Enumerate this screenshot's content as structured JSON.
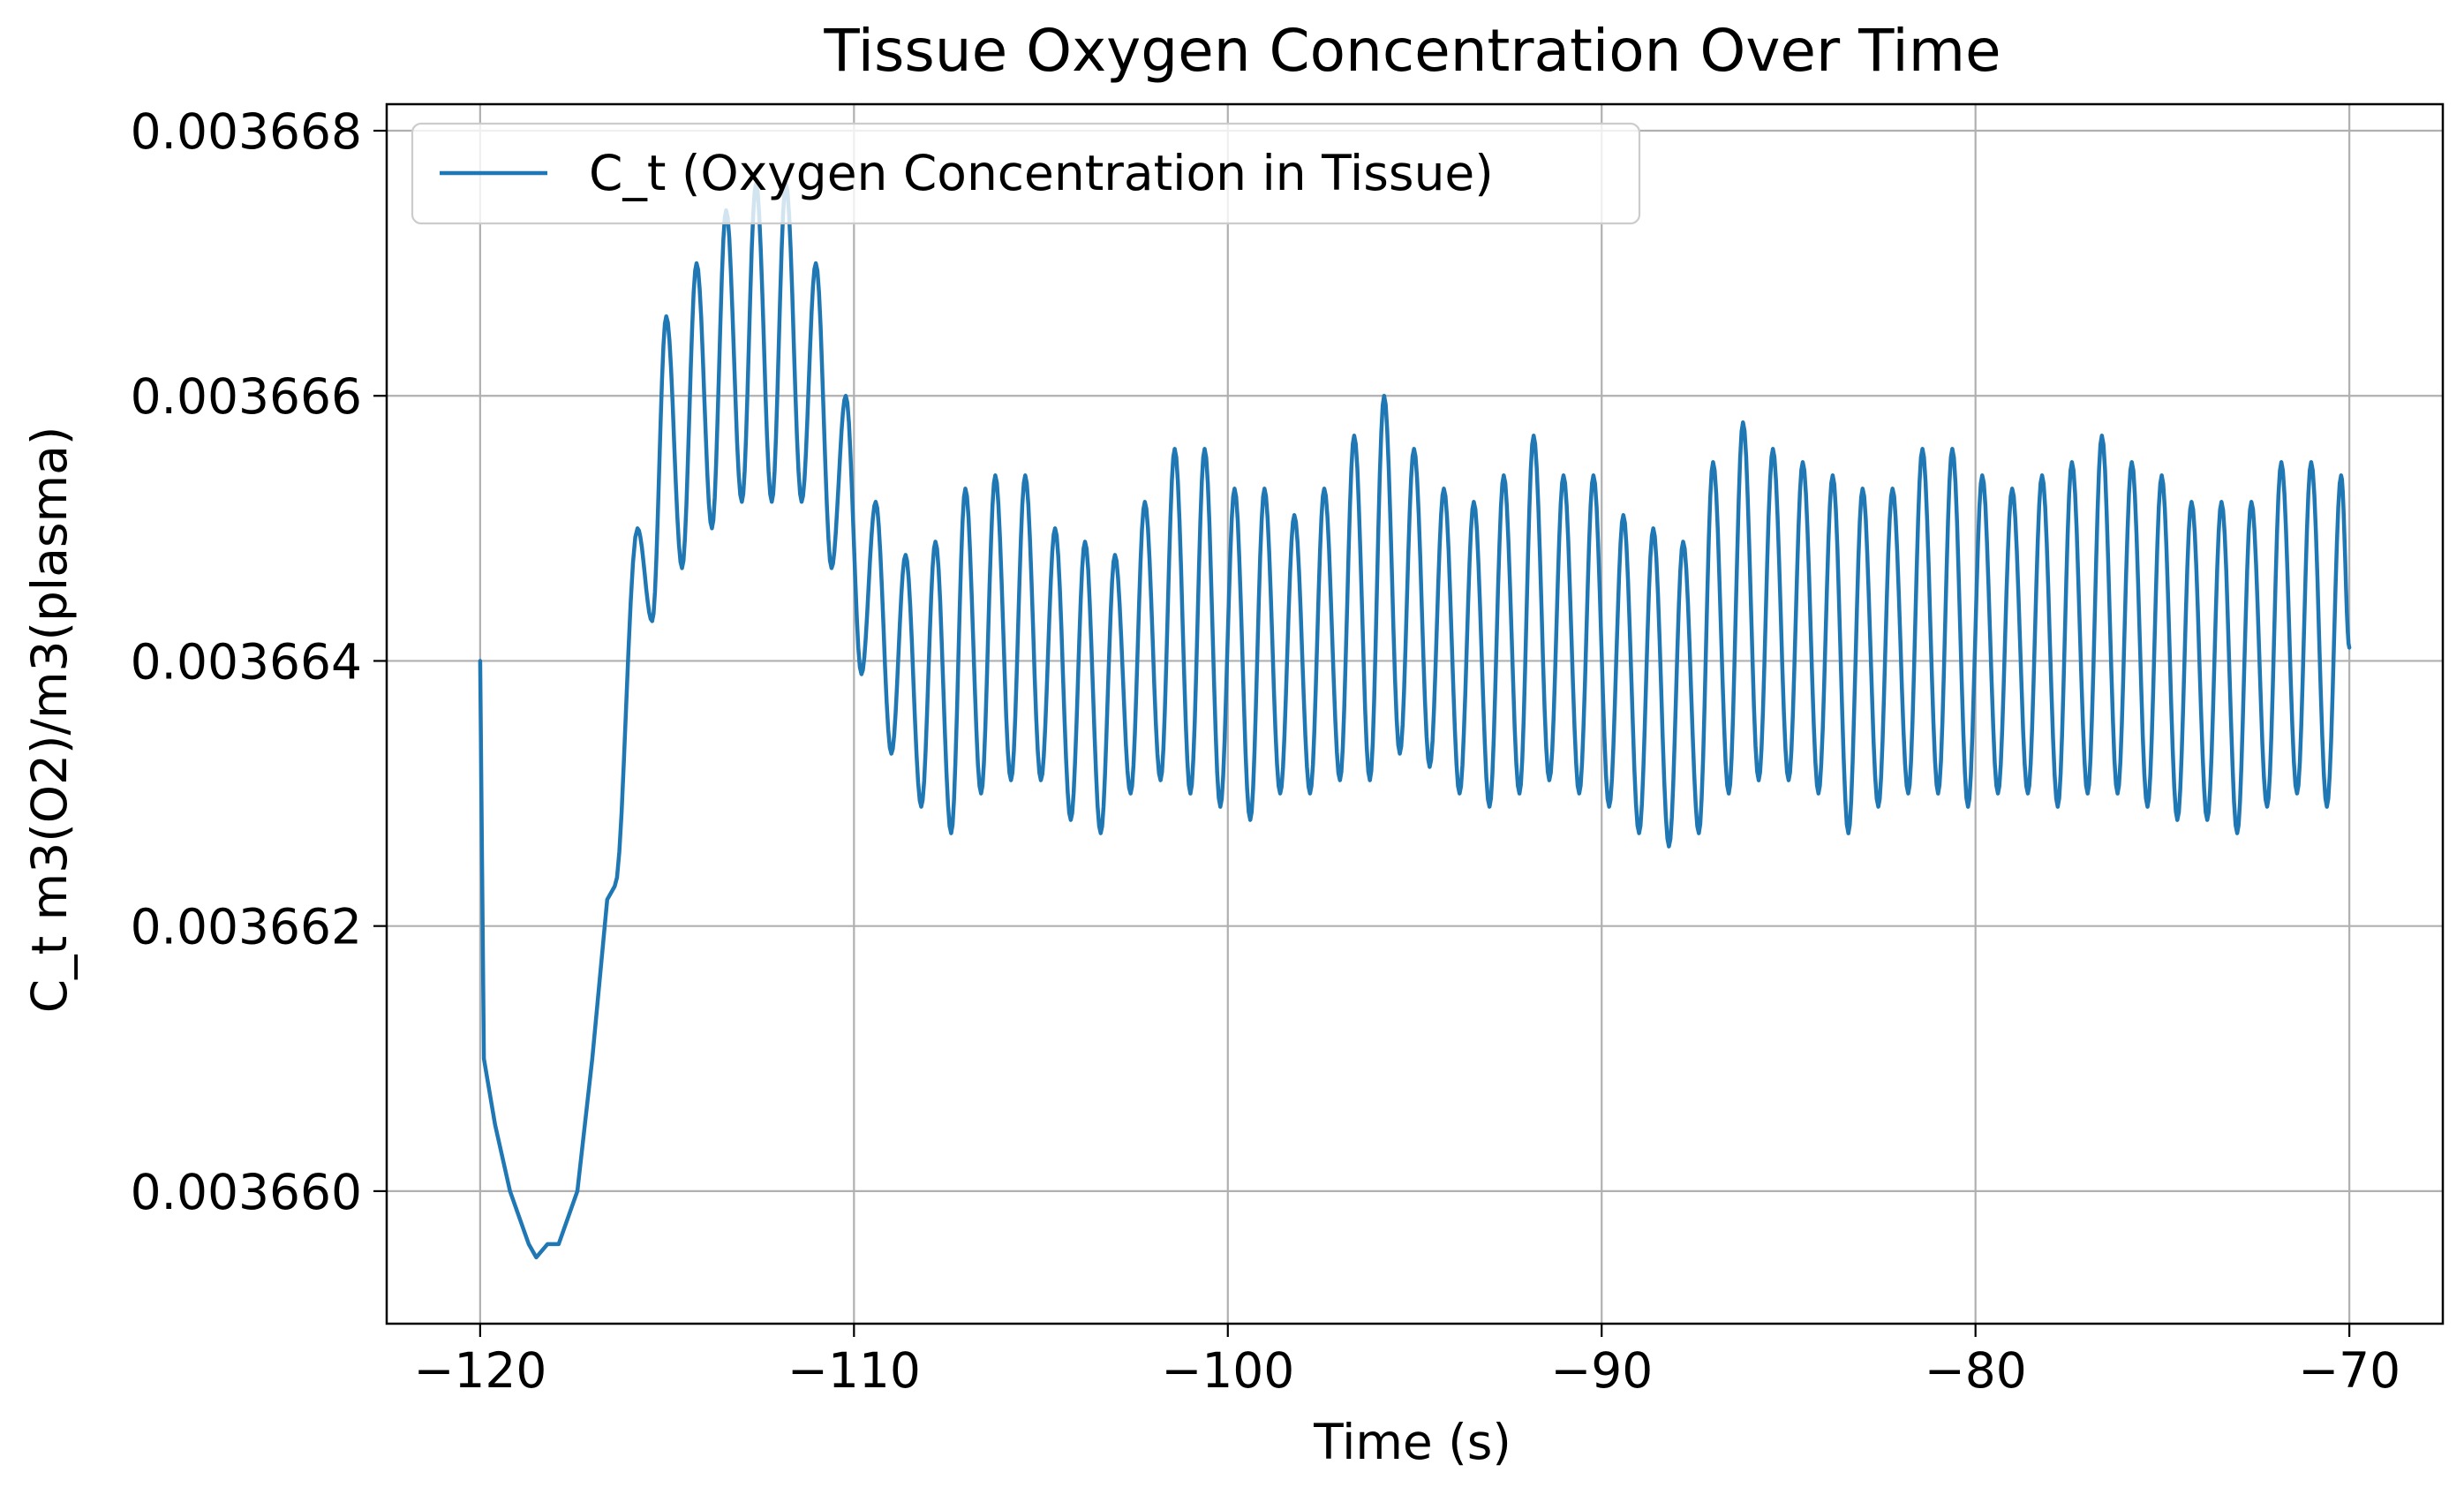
{
  "chart_data": {
    "type": "line",
    "title": "Tissue Oxygen Concentration Over Time",
    "xlabel": "Time (s)",
    "ylabel": "C_t m3(O2)/m3(plasma)",
    "xlim": [
      -122.5,
      -67.5
    ],
    "ylim": [
      0.003659,
      0.0036682
    ],
    "x_ticks": [
      -120,
      -110,
      -100,
      -90,
      -80,
      -70
    ],
    "x_tick_labels": [
      "−120",
      "−110",
      "−100",
      "−90",
      "−80",
      "−70"
    ],
    "y_ticks": [
      0.00366,
      0.003662,
      0.003664,
      0.003666,
      0.003668
    ],
    "y_tick_labels": [
      "0.003660",
      "0.003662",
      "0.003664",
      "0.003666",
      "0.003668"
    ],
    "grid": true,
    "legend_position": "top-left",
    "series": [
      {
        "name": "C_t (Oxygen Concentration in Tissue)",
        "color": "#1f77b4",
        "x_range": [
          -120,
          -70
        ],
        "x": [
          -120.0,
          -119.9,
          -119.6,
          -119.2,
          -118.7,
          -118.5,
          -118.2,
          -117.9,
          -117.4,
          -117.0,
          -116.6,
          -116.4
        ],
        "values": [
          0.003664,
          0.003661,
          0.0036605,
          0.00366,
          0.0036596,
          0.0036595,
          0.0036596,
          0.0036596,
          0.00366,
          0.003661,
          0.0036622,
          0.0036623
        ],
        "peaks": [
          [
            -115.79,
            0.003665
          ],
          [
            -115.02,
            0.0036666
          ],
          [
            -114.21,
            0.003667
          ],
          [
            -113.42,
            0.0036674
          ],
          [
            -112.62,
            0.0036676
          ],
          [
            -111.82,
            0.0036676
          ],
          [
            -111.02,
            0.003667
          ],
          [
            -110.22,
            0.003666
          ],
          [
            -109.42,
            0.0036652
          ],
          [
            -108.62,
            0.0036648
          ],
          [
            -107.82,
            0.0036649
          ],
          [
            -107.02,
            0.0036653
          ],
          [
            -106.22,
            0.0036654
          ],
          [
            -105.42,
            0.0036654
          ],
          [
            -104.62,
            0.003665
          ],
          [
            -103.82,
            0.0036649
          ],
          [
            -103.02,
            0.0036648
          ],
          [
            -102.22,
            0.0036652
          ],
          [
            -101.42,
            0.0036656
          ],
          [
            -100.62,
            0.0036656
          ],
          [
            -99.82,
            0.0036653
          ],
          [
            -99.02,
            0.0036653
          ],
          [
            -98.22,
            0.0036651
          ],
          [
            -97.42,
            0.0036653
          ],
          [
            -96.62,
            0.0036657
          ],
          [
            -95.82,
            0.003666
          ],
          [
            -95.02,
            0.0036656
          ],
          [
            -94.22,
            0.0036653
          ],
          [
            -93.42,
            0.0036652
          ],
          [
            -92.62,
            0.0036654
          ],
          [
            -91.82,
            0.0036657
          ],
          [
            -91.02,
            0.0036654
          ],
          [
            -90.22,
            0.0036654
          ],
          [
            -89.42,
            0.0036651
          ],
          [
            -88.62,
            0.003665
          ],
          [
            -87.82,
            0.0036649
          ],
          [
            -87.02,
            0.0036655
          ],
          [
            -86.22,
            0.0036658
          ],
          [
            -85.42,
            0.0036656
          ],
          [
            -84.62,
            0.0036655
          ],
          [
            -83.82,
            0.0036654
          ],
          [
            -83.02,
            0.0036653
          ],
          [
            -82.22,
            0.0036653
          ],
          [
            -81.42,
            0.0036656
          ],
          [
            -80.62,
            0.0036656
          ],
          [
            -79.82,
            0.0036654
          ],
          [
            -79.02,
            0.0036653
          ],
          [
            -78.22,
            0.0036654
          ],
          [
            -77.42,
            0.0036655
          ],
          [
            -76.62,
            0.0036657
          ],
          [
            -75.82,
            0.0036655
          ],
          [
            -75.02,
            0.0036654
          ],
          [
            -74.22,
            0.0036652
          ],
          [
            -73.42,
            0.0036652
          ],
          [
            -72.62,
            0.0036652
          ],
          [
            -71.82,
            0.0036655
          ],
          [
            -71.02,
            0.0036655
          ],
          [
            -70.22,
            0.0036654
          ]
        ],
        "troughs": [
          [
            -115.4,
            0.0036643
          ],
          [
            -114.6,
            0.0036647
          ],
          [
            -113.8,
            0.003665
          ],
          [
            -113.0,
            0.0036652
          ],
          [
            -112.2,
            0.0036652
          ],
          [
            -111.4,
            0.0036652
          ],
          [
            -110.6,
            0.0036647
          ],
          [
            -109.8,
            0.0036639
          ],
          [
            -109.0,
            0.0036633
          ],
          [
            -108.2,
            0.0036629
          ],
          [
            -107.4,
            0.0036627
          ],
          [
            -106.6,
            0.003663
          ],
          [
            -105.8,
            0.0036631
          ],
          [
            -105.0,
            0.0036631
          ],
          [
            -104.2,
            0.0036628
          ],
          [
            -103.4,
            0.0036627
          ],
          [
            -102.6,
            0.003663
          ],
          [
            -101.8,
            0.0036631
          ],
          [
            -101.0,
            0.003663
          ],
          [
            -100.2,
            0.0036629
          ],
          [
            -99.4,
            0.0036628
          ],
          [
            -98.6,
            0.003663
          ],
          [
            -97.8,
            0.003663
          ],
          [
            -97.0,
            0.0036631
          ],
          [
            -96.2,
            0.0036631
          ],
          [
            -95.4,
            0.0036633
          ],
          [
            -94.6,
            0.0036632
          ],
          [
            -93.8,
            0.003663
          ],
          [
            -93.0,
            0.0036629
          ],
          [
            -92.2,
            0.003663
          ],
          [
            -91.4,
            0.0036631
          ],
          [
            -90.6,
            0.003663
          ],
          [
            -89.8,
            0.0036629
          ],
          [
            -89.0,
            0.0036627
          ],
          [
            -88.2,
            0.0036626
          ],
          [
            -87.4,
            0.0036627
          ],
          [
            -86.6,
            0.003663
          ],
          [
            -85.8,
            0.0036631
          ],
          [
            -85.0,
            0.0036631
          ],
          [
            -84.2,
            0.003663
          ],
          [
            -83.4,
            0.0036627
          ],
          [
            -82.6,
            0.0036629
          ],
          [
            -81.8,
            0.003663
          ],
          [
            -81.0,
            0.003663
          ],
          [
            -80.2,
            0.0036629
          ],
          [
            -79.4,
            0.003663
          ],
          [
            -78.6,
            0.003663
          ],
          [
            -77.8,
            0.0036629
          ],
          [
            -77.0,
            0.003663
          ],
          [
            -76.2,
            0.003663
          ],
          [
            -75.4,
            0.0036629
          ],
          [
            -74.6,
            0.0036628
          ],
          [
            -73.8,
            0.0036628
          ],
          [
            -73.0,
            0.0036627
          ],
          [
            -72.2,
            0.0036629
          ],
          [
            -71.4,
            0.003663
          ],
          [
            -70.6,
            0.0036629
          ]
        ],
        "end_value": 0.0036641
      }
    ]
  }
}
